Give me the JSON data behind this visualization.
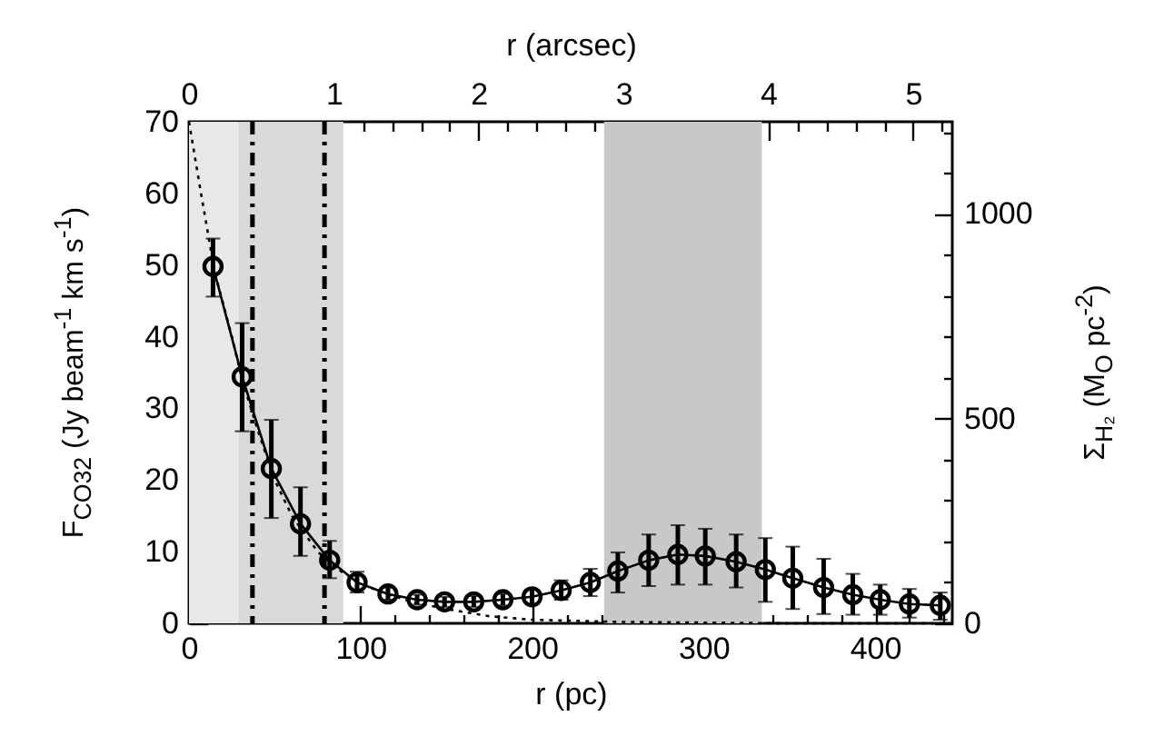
{
  "chart_data": {
    "type": "line",
    "xlabel": "r (pc)",
    "x2label": "r (arcsec)",
    "ylabel": "F$_{CO32}$ (Jy beam$^{-1}$ km s$^{-1}$)",
    "y2label": "Σ$_{H₂}$ (M$_{O}$ pc$^{-2}$)",
    "xlim": [
      0,
      445
    ],
    "xticks": [
      0,
      {
        "value": 20,
        "label": null
      },
      {
        "value": 40,
        "label": null
      },
      {
        "value": 60,
        "label": null
      },
      {
        "value": 80,
        "label": null
      },
      100,
      {
        "value": 120,
        "label": null
      },
      {
        "value": 140,
        "label": null
      },
      {
        "value": 160,
        "label": null
      },
      {
        "value": 180,
        "label": null
      },
      200,
      {
        "value": 220,
        "label": null
      },
      {
        "value": 240,
        "label": null
      },
      {
        "value": 260,
        "label": null
      },
      {
        "value": 280,
        "label": null
      },
      300,
      {
        "value": 320,
        "label": null
      },
      {
        "value": 340,
        "label": null
      },
      {
        "value": 360,
        "label": null
      },
      {
        "value": 380,
        "label": null
      },
      400,
      {
        "value": 420,
        "label": null
      },
      {
        "value": 440,
        "label": null
      }
    ],
    "x2lim": [
      0,
      5.27
    ],
    "x2ticks": [
      0,
      {
        "value": 0.2,
        "label": null
      },
      {
        "value": 0.4,
        "label": null
      },
      {
        "value": 0.6,
        "label": null
      },
      {
        "value": 0.8,
        "label": null
      },
      1,
      {
        "value": 1.2,
        "label": null
      },
      {
        "value": 1.4,
        "label": null
      },
      {
        "value": 1.6,
        "label": null
      },
      {
        "value": 1.8,
        "label": null
      },
      2,
      {
        "value": 2.2,
        "label": null
      },
      {
        "value": 2.4,
        "label": null
      },
      {
        "value": 2.6,
        "label": null
      },
      {
        "value": 2.8,
        "label": null
      },
      3,
      {
        "value": 3.2,
        "label": null
      },
      {
        "value": 3.4,
        "label": null
      },
      {
        "value": 3.6,
        "label": null
      },
      {
        "value": 3.8,
        "label": null
      },
      4,
      {
        "value": 4.2,
        "label": null
      },
      {
        "value": 4.4,
        "label": null
      },
      {
        "value": 4.6,
        "label": null
      },
      {
        "value": 4.8,
        "label": null
      },
      5,
      {
        "value": 5.2,
        "label": null
      }
    ],
    "ylim": [
      0,
      70
    ],
    "yticks": [
      0,
      {
        "value": 5,
        "label": null
      },
      10,
      {
        "value": 15,
        "label": null
      },
      20,
      {
        "value": 25,
        "label": null
      },
      30,
      {
        "value": 35,
        "label": null
      },
      40,
      {
        "value": 45,
        "label": null
      },
      50,
      {
        "value": 55,
        "label": null
      },
      60,
      {
        "value": 65,
        "label": null
      },
      70
    ],
    "y2lim": [
      0,
      1225
    ],
    "y2ticks": [
      0,
      {
        "value": 100,
        "label": null
      },
      {
        "value": 200,
        "label": null
      },
      {
        "value": 300,
        "label": null
      },
      {
        "value": 400,
        "label": null
      },
      500,
      {
        "value": 600,
        "label": null
      },
      {
        "value": 700,
        "label": null
      },
      {
        "value": 800,
        "label": null
      },
      {
        "value": 900,
        "label": null
      },
      1000,
      {
        "value": 1100,
        "label": null
      },
      {
        "value": 1200,
        "label": null
      }
    ],
    "grid": false,
    "bands": [
      {
        "axis": "x",
        "from": 0,
        "to": 29,
        "color": "#e8e8e8"
      },
      {
        "axis": "x",
        "from": 29,
        "to": 90,
        "color": "#d9d9d9"
      },
      {
        "axis": "x",
        "from": 242,
        "to": 334,
        "color": "#c8c8c8"
      }
    ],
    "ref_lines": [
      {
        "axis": "x",
        "value": 37,
        "color": "#000000",
        "line_style": "dashed"
      },
      {
        "axis": "x",
        "value": 79,
        "color": "#000000",
        "line_style": "dashed"
      }
    ],
    "series": [
      {
        "color": "#000000",
        "marker": "circle",
        "line_style": "solid",
        "x": [
          14,
          31,
          48,
          65,
          82,
          98,
          116,
          133,
          149,
          166,
          183,
          200,
          217,
          234,
          250,
          268,
          285,
          301,
          319,
          336,
          352,
          370,
          387,
          403,
          420,
          438
        ],
        "values": [
          49.8,
          34.4,
          21.6,
          13.9,
          8.8,
          5.7,
          4.1,
          3.3,
          3.0,
          3.0,
          3.3,
          3.7,
          4.6,
          5.7,
          7.3,
          8.8,
          9.6,
          9.4,
          8.6,
          7.5,
          6.3,
          5.0,
          4.0,
          3.3,
          2.7,
          2.5
        ],
        "errors": [
          [
            45.6,
            53.7
          ],
          [
            26.8,
            41.9
          ],
          [
            14.7,
            28.4
          ],
          [
            9.4,
            19
          ],
          [
            6.3,
            11.5
          ],
          [
            4.3,
            7.2
          ],
          [
            3.3,
            5.0
          ],
          [
            2.6,
            4.0
          ],
          [
            2.3,
            3.7
          ],
          [
            2.3,
            3.8
          ],
          [
            2.5,
            4.1
          ],
          [
            2.7,
            4.7
          ],
          [
            3.3,
            6.0
          ],
          [
            3.8,
            7.6
          ],
          [
            4.3,
            9.9
          ],
          [
            5.2,
            12.4
          ],
          [
            5.4,
            13.7
          ],
          [
            5.4,
            13.2
          ],
          [
            5.0,
            12.4
          ],
          [
            3.0,
            11.9
          ],
          [
            2.0,
            10.7
          ],
          [
            1.3,
            9.0
          ],
          [
            1.2,
            6.9
          ],
          [
            1.2,
            5.4
          ],
          [
            0.8,
            4.8
          ],
          [
            0.5,
            4.3
          ]
        ]
      },
      {
        "color": "#000000",
        "marker": "none",
        "line_style": "dotted",
        "x": [
          0,
          7,
          15,
          25,
          31,
          40,
          50,
          60,
          75,
          90,
          110,
          130,
          150,
          175,
          200,
          250,
          300,
          350,
          445
        ],
        "values": [
          70,
          60,
          49,
          40,
          34,
          27,
          20,
          15,
          10,
          7,
          4.5,
          3,
          2,
          1,
          0.5,
          0.2,
          0.1,
          0,
          0
        ]
      }
    ]
  }
}
